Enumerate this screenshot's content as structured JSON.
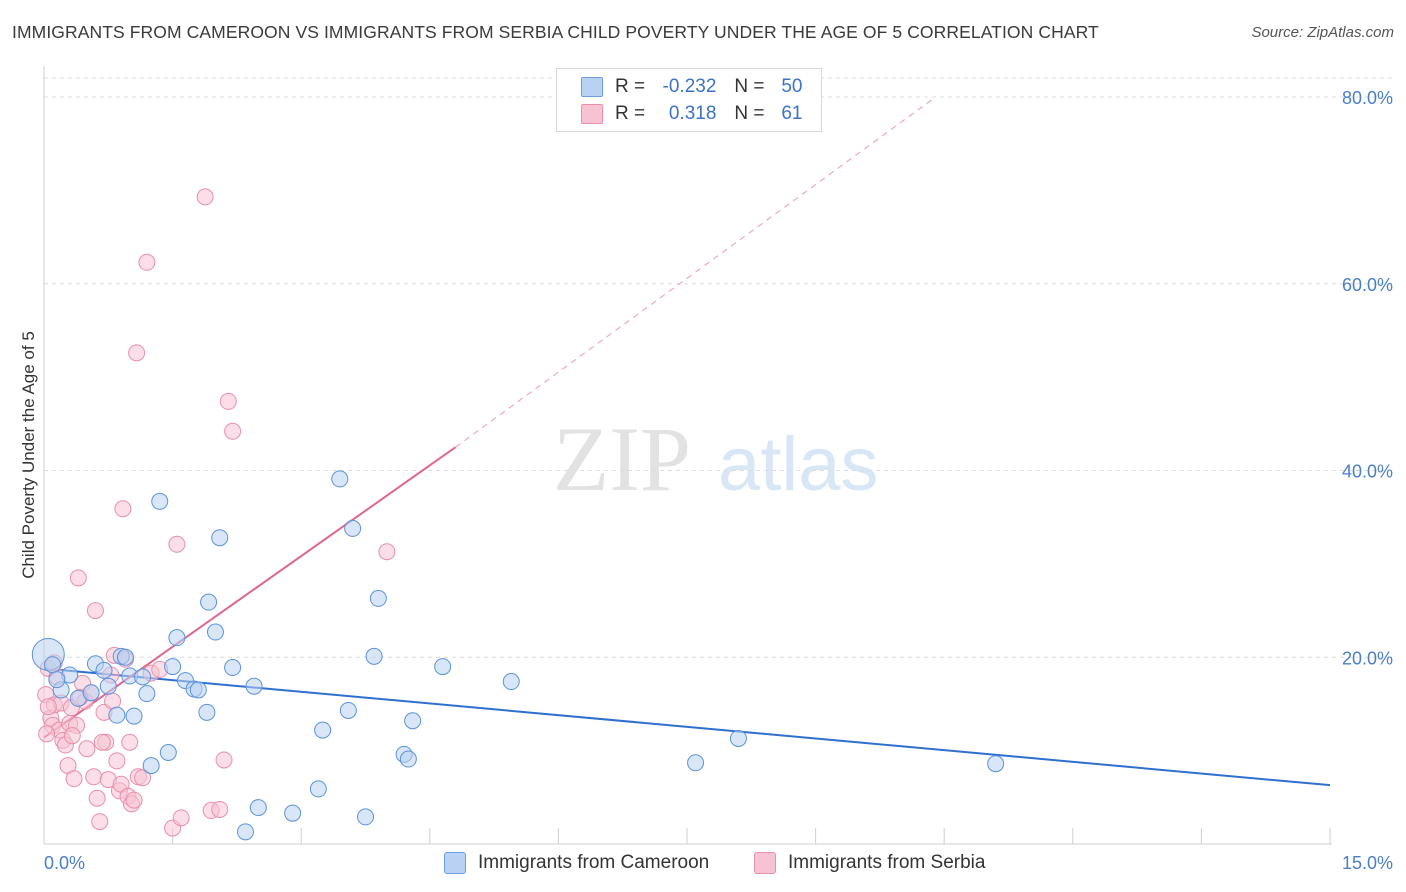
{
  "title": "IMMIGRANTS FROM CAMEROON VS IMMIGRANTS FROM SERBIA CHILD POVERTY UNDER THE AGE OF 5 CORRELATION CHART",
  "source": "Source: ZipAtlas.com",
  "watermark": {
    "zip": "ZIP",
    "atlas": "atlas"
  },
  "legend": {
    "r_label": "R =",
    "n_label": "N =",
    "rows": [
      {
        "name": "Immigrants from Cameroon",
        "r": "-0.232",
        "n": "50",
        "fill": "#b9d2f3",
        "stroke": "#6a9fe0"
      },
      {
        "name": "Immigrants from Serbia",
        "r": "0.318",
        "n": "61",
        "fill": "#f7c3d3",
        "stroke": "#e88fab"
      }
    ]
  },
  "chart_data": {
    "type": "scatter",
    "xlabel": "",
    "ylabel": "Child Poverty Under the Age of 5",
    "xlim": [
      0,
      15
    ],
    "ylim": [
      0,
      80
    ],
    "x_tick_labels": {
      "min": "0.0%",
      "max": "15.0%"
    },
    "y_ticks": [
      {
        "value": 20,
        "label": "20.0%"
      },
      {
        "value": 40,
        "label": "40.0%"
      },
      {
        "value": 60,
        "label": "60.0%"
      },
      {
        "value": 80,
        "label": "80.0%"
      }
    ],
    "colors": {
      "cameroon": "#2f6fcf",
      "serbia": "#e06690",
      "axis_text": "#4a7fc8"
    },
    "series": [
      {
        "name": "Immigrants from Cameroon",
        "trend": {
          "x": [
            0,
            15
          ],
          "y": [
            18.8,
            6.3
          ],
          "dashed_after": null
        },
        "points": [
          {
            "x": 0.05,
            "y": 20.3,
            "big": true
          },
          {
            "x": 0.1,
            "y": 19.2
          },
          {
            "x": 0.2,
            "y": 16.5
          },
          {
            "x": 0.3,
            "y": 18.1
          },
          {
            "x": 0.4,
            "y": 15.6
          },
          {
            "x": 0.55,
            "y": 16.2
          },
          {
            "x": 0.6,
            "y": 19.3
          },
          {
            "x": 0.7,
            "y": 18.6
          },
          {
            "x": 0.75,
            "y": 16.9
          },
          {
            "x": 0.85,
            "y": 13.8
          },
          {
            "x": 0.9,
            "y": 20.1
          },
          {
            "x": 1.0,
            "y": 18.0
          },
          {
            "x": 1.05,
            "y": 13.7
          },
          {
            "x": 1.15,
            "y": 17.9
          },
          {
            "x": 1.2,
            "y": 16.1
          },
          {
            "x": 1.25,
            "y": 8.4
          },
          {
            "x": 1.35,
            "y": 36.7
          },
          {
            "x": 1.45,
            "y": 9.8
          },
          {
            "x": 1.5,
            "y": 19.0
          },
          {
            "x": 1.55,
            "y": 22.1
          },
          {
            "x": 1.65,
            "y": 17.5
          },
          {
            "x": 1.75,
            "y": 16.6
          },
          {
            "x": 1.8,
            "y": 16.5
          },
          {
            "x": 1.9,
            "y": 14.1
          },
          {
            "x": 1.92,
            "y": 25.9
          },
          {
            "x": 2.0,
            "y": 22.7
          },
          {
            "x": 2.05,
            "y": 32.8
          },
          {
            "x": 2.2,
            "y": 18.9
          },
          {
            "x": 2.35,
            "y": 1.3
          },
          {
            "x": 2.45,
            "y": 16.9
          },
          {
            "x": 2.5,
            "y": 3.9
          },
          {
            "x": 2.9,
            "y": 3.3
          },
          {
            "x": 3.2,
            "y": 5.9
          },
          {
            "x": 3.25,
            "y": 12.2
          },
          {
            "x": 3.45,
            "y": 39.1
          },
          {
            "x": 3.55,
            "y": 14.3
          },
          {
            "x": 3.6,
            "y": 33.8
          },
          {
            "x": 3.75,
            "y": 2.9
          },
          {
            "x": 3.85,
            "y": 20.1
          },
          {
            "x": 3.9,
            "y": 26.3
          },
          {
            "x": 4.2,
            "y": 9.6
          },
          {
            "x": 4.25,
            "y": 9.1
          },
          {
            "x": 4.3,
            "y": 13.2
          },
          {
            "x": 4.65,
            "y": 19.0
          },
          {
            "x": 5.45,
            "y": 17.4
          },
          {
            "x": 7.6,
            "y": 8.7
          },
          {
            "x": 8.1,
            "y": 11.3
          },
          {
            "x": 11.1,
            "y": 8.6
          },
          {
            "x": 0.95,
            "y": 20.0
          },
          {
            "x": 0.15,
            "y": 17.6
          }
        ]
      },
      {
        "name": "Immigrants from Serbia",
        "trend": {
          "x": [
            0,
            4.8
          ],
          "y": [
            11.4,
            42.5
          ],
          "dashed_to": [
            10.4,
            80.0
          ]
        },
        "points": [
          {
            "x": 0.02,
            "y": 16.0
          },
          {
            "x": 0.05,
            "y": 18.8
          },
          {
            "x": 0.08,
            "y": 13.5
          },
          {
            "x": 0.1,
            "y": 12.7
          },
          {
            "x": 0.12,
            "y": 14.9
          },
          {
            "x": 0.15,
            "y": 17.9
          },
          {
            "x": 0.18,
            "y": 12.2
          },
          {
            "x": 0.2,
            "y": 15.1
          },
          {
            "x": 0.22,
            "y": 11.1
          },
          {
            "x": 0.25,
            "y": 10.6
          },
          {
            "x": 0.28,
            "y": 8.4
          },
          {
            "x": 0.3,
            "y": 12.9
          },
          {
            "x": 0.32,
            "y": 14.6
          },
          {
            "x": 0.35,
            "y": 7.0
          },
          {
            "x": 0.38,
            "y": 12.7
          },
          {
            "x": 0.4,
            "y": 28.5
          },
          {
            "x": 0.45,
            "y": 17.2
          },
          {
            "x": 0.48,
            "y": 15.3
          },
          {
            "x": 0.5,
            "y": 10.2
          },
          {
            "x": 0.55,
            "y": 16.2
          },
          {
            "x": 0.58,
            "y": 7.2
          },
          {
            "x": 0.6,
            "y": 25.0
          },
          {
            "x": 0.62,
            "y": 4.9
          },
          {
            "x": 0.65,
            "y": 2.4
          },
          {
            "x": 0.7,
            "y": 14.1
          },
          {
            "x": 0.72,
            "y": 10.9
          },
          {
            "x": 0.75,
            "y": 6.9
          },
          {
            "x": 0.78,
            "y": 18.1
          },
          {
            "x": 0.8,
            "y": 15.3
          },
          {
            "x": 0.82,
            "y": 20.2
          },
          {
            "x": 0.85,
            "y": 8.9
          },
          {
            "x": 0.88,
            "y": 5.7
          },
          {
            "x": 0.9,
            "y": 6.4
          },
          {
            "x": 0.92,
            "y": 35.9
          },
          {
            "x": 0.95,
            "y": 19.8
          },
          {
            "x": 0.98,
            "y": 5.1
          },
          {
            "x": 1.0,
            "y": 10.9
          },
          {
            "x": 1.02,
            "y": 4.3
          },
          {
            "x": 1.05,
            "y": 4.7
          },
          {
            "x": 1.08,
            "y": 52.6
          },
          {
            "x": 1.1,
            "y": 7.2
          },
          {
            "x": 1.15,
            "y": 7.1
          },
          {
            "x": 1.2,
            "y": 62.3
          },
          {
            "x": 1.25,
            "y": 18.3
          },
          {
            "x": 1.35,
            "y": 18.7
          },
          {
            "x": 1.5,
            "y": 1.7
          },
          {
            "x": 1.55,
            "y": 32.1
          },
          {
            "x": 1.6,
            "y": 2.8
          },
          {
            "x": 1.88,
            "y": 69.3
          },
          {
            "x": 1.95,
            "y": 3.6
          },
          {
            "x": 2.05,
            "y": 3.7
          },
          {
            "x": 2.1,
            "y": 9.0
          },
          {
            "x": 2.15,
            "y": 47.4
          },
          {
            "x": 2.2,
            "y": 44.2
          },
          {
            "x": 4.0,
            "y": 31.3
          },
          {
            "x": 0.05,
            "y": 14.7
          },
          {
            "x": 0.12,
            "y": 19.4
          },
          {
            "x": 0.33,
            "y": 11.6
          },
          {
            "x": 0.42,
            "y": 15.7
          },
          {
            "x": 0.68,
            "y": 10.9
          },
          {
            "x": 0.03,
            "y": 11.8
          }
        ]
      }
    ]
  }
}
